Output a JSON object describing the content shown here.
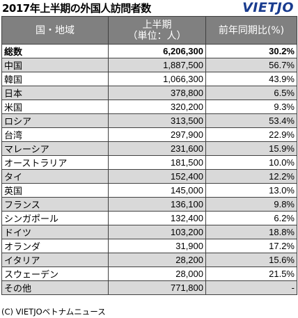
{
  "title": "2017年上半期の外国人訪問者数",
  "logo": "VIETJO",
  "table": {
    "headers": {
      "country": "国・地域",
      "period_line1": "上半期",
      "period_line2": "（単位：人）",
      "change": "前年同期比(%)"
    },
    "rows": [
      {
        "name": "総数",
        "value": "6,206,300",
        "change": "30.2%"
      },
      {
        "name": "中国",
        "value": "1,887,500",
        "change": "56.7%"
      },
      {
        "name": "韓国",
        "value": "1,066,300",
        "change": "43.9%"
      },
      {
        "name": "日本",
        "value": "378,800",
        "change": "6.5%"
      },
      {
        "name": "米国",
        "value": "320,200",
        "change": "9.3%"
      },
      {
        "name": "ロシア",
        "value": "313,500",
        "change": "53.4%"
      },
      {
        "name": "台湾",
        "value": "297,900",
        "change": "22.9%"
      },
      {
        "name": "マレーシア",
        "value": "231,600",
        "change": "15.9%"
      },
      {
        "name": "オーストラリア",
        "value": "181,500",
        "change": "10.0%"
      },
      {
        "name": "タイ",
        "value": "152,400",
        "change": "12.2%"
      },
      {
        "name": "英国",
        "value": "145,000",
        "change": "13.0%"
      },
      {
        "name": "フランス",
        "value": "136,100",
        "change": "9.8%"
      },
      {
        "name": "シンガポール",
        "value": "132,400",
        "change": "6.2%"
      },
      {
        "name": "ドイツ",
        "value": "103,200",
        "change": "18.8%"
      },
      {
        "name": "オランダ",
        "value": "31,900",
        "change": "17.2%"
      },
      {
        "name": "イタリア",
        "value": "28,200",
        "change": "15.6%"
      },
      {
        "name": "スウェーデン",
        "value": "28,000",
        "change": "21.5%"
      },
      {
        "name": "その他",
        "value": "771,800",
        "change": "-"
      }
    ]
  },
  "footer": "(C) VIETJOベトナムニュース",
  "colors": {
    "header_bg": "#808080",
    "shade_bg": "#d9d9d9",
    "logo": "#1a3c8f"
  }
}
